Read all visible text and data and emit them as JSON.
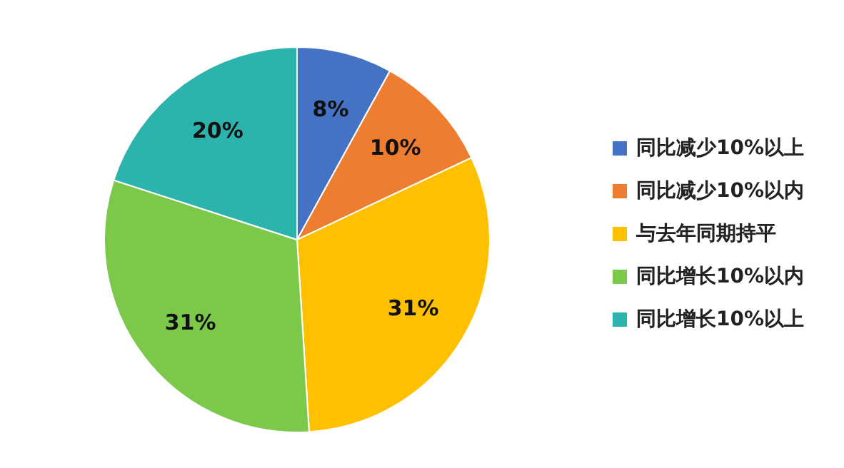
{
  "chart_data": {
    "type": "pie",
    "categories": [
      "同比减少10%以上",
      "同比减少10%以内",
      "与去年同期持平",
      "同比增长10%以内",
      "同比增长10%以上"
    ],
    "values": [
      8,
      10,
      31,
      31,
      20
    ],
    "colors": [
      "#4472c4",
      "#ed7d31",
      "#ffc000",
      "#7cc84a",
      "#2db3ad"
    ],
    "value_labels": [
      "8%",
      "10%",
      "31%",
      "31%",
      "20%"
    ],
    "legend": "right"
  }
}
